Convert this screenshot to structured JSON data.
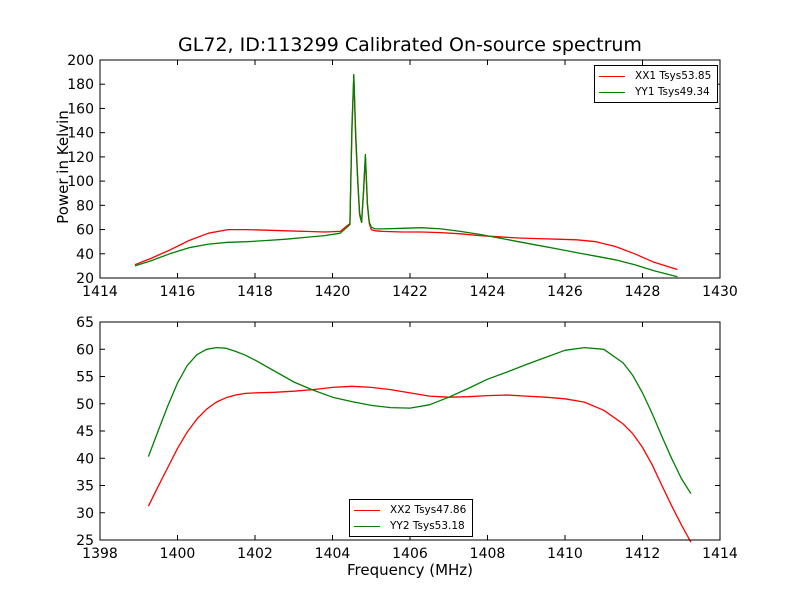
{
  "figure": {
    "title": "GL72, ID:113299 Calibrated On-source spectrum",
    "xlabel": "Frequency (MHz)",
    "top_ylabel": "Power in Kelvin"
  },
  "colors": {
    "red": "#ff0000",
    "green": "#008000"
  },
  "chart_data": [
    {
      "type": "line",
      "title": "GL72, ID:113299 Calibrated On-source spectrum",
      "xlabel": "",
      "ylabel": "Power in Kelvin",
      "xlim": [
        1414,
        1430
      ],
      "ylim": [
        20,
        200
      ],
      "xticks": [
        1414,
        1416,
        1418,
        1420,
        1422,
        1424,
        1426,
        1428,
        1430
      ],
      "yticks": [
        20,
        40,
        60,
        80,
        100,
        120,
        140,
        160,
        180,
        200
      ],
      "grid": false,
      "legend_position": "top-right",
      "series": [
        {
          "name": "XX1 Tsys53.85",
          "color": "#ff0000",
          "x": [
            1414.9,
            1415.3,
            1415.8,
            1416.3,
            1416.8,
            1417.3,
            1417.8,
            1418.3,
            1418.8,
            1419.3,
            1419.8,
            1420.2,
            1420.45,
            1420.5,
            1420.55,
            1420.6,
            1420.65,
            1420.7,
            1420.75,
            1420.8,
            1420.85,
            1420.9,
            1420.95,
            1421.0,
            1421.1,
            1421.3,
            1421.8,
            1422.3,
            1422.8,
            1423.3,
            1423.8,
            1424.3,
            1424.8,
            1425.3,
            1425.8,
            1426.3,
            1426.8,
            1427.3,
            1427.8,
            1428.3,
            1428.9
          ],
          "y": [
            31,
            36,
            43,
            51,
            57,
            60,
            60,
            59.5,
            59,
            58.5,
            58,
            58.5,
            65,
            140,
            187,
            135,
            100,
            72,
            66,
            90,
            120,
            80,
            65,
            60,
            59,
            58.5,
            58,
            58,
            57.5,
            56.5,
            55,
            54,
            53,
            52.5,
            52,
            51.5,
            50,
            46,
            40,
            33,
            27
          ]
        },
        {
          "name": "YY1 Tsys49.34",
          "color": "#008000",
          "x": [
            1414.9,
            1415.3,
            1415.8,
            1416.3,
            1416.8,
            1417.3,
            1417.8,
            1418.3,
            1418.8,
            1419.3,
            1419.8,
            1420.2,
            1420.45,
            1420.5,
            1420.55,
            1420.6,
            1420.65,
            1420.7,
            1420.75,
            1420.8,
            1420.85,
            1420.9,
            1420.95,
            1421.0,
            1421.1,
            1421.3,
            1421.8,
            1422.3,
            1422.8,
            1423.3,
            1423.8,
            1424.3,
            1424.8,
            1425.3,
            1425.8,
            1426.3,
            1426.8,
            1427.3,
            1427.8,
            1428.3,
            1428.9
          ],
          "y": [
            30,
            34,
            40,
            45,
            48,
            49.5,
            50,
            51,
            52,
            53.5,
            55,
            57,
            64,
            145,
            188,
            140,
            102,
            74,
            66,
            92,
            122,
            82,
            66,
            62,
            60.5,
            60.5,
            61,
            61.5,
            60.5,
            58.5,
            56,
            53,
            50,
            47,
            44,
            41,
            38,
            35,
            31,
            26,
            21
          ]
        }
      ]
    },
    {
      "type": "line",
      "title": "",
      "xlabel": "Frequency (MHz)",
      "ylabel": "",
      "xlim": [
        1398,
        1414
      ],
      "ylim": [
        25,
        65
      ],
      "xticks": [
        1398,
        1400,
        1402,
        1404,
        1406,
        1408,
        1410,
        1412,
        1414
      ],
      "yticks": [
        25,
        30,
        35,
        40,
        45,
        50,
        55,
        60,
        65
      ],
      "grid": false,
      "legend_position": "bottom-center",
      "series": [
        {
          "name": "XX2 Tsys47.86",
          "color": "#ff0000",
          "x": [
            1399.25,
            1399.5,
            1399.75,
            1400.0,
            1400.25,
            1400.5,
            1400.75,
            1401.0,
            1401.25,
            1401.5,
            1401.75,
            1402.0,
            1402.5,
            1403.0,
            1403.5,
            1404.0,
            1404.5,
            1405.0,
            1405.5,
            1406.0,
            1406.5,
            1407.0,
            1407.5,
            1408.0,
            1408.5,
            1409.0,
            1409.5,
            1410.0,
            1410.5,
            1411.0,
            1411.5,
            1411.75,
            1412.0,
            1412.25,
            1412.5,
            1412.75,
            1413.0,
            1413.25
          ],
          "y": [
            31.2,
            34.8,
            38.3,
            41.8,
            44.8,
            47.2,
            49.0,
            50.3,
            51.1,
            51.6,
            51.9,
            52.0,
            52.1,
            52.3,
            52.6,
            53.0,
            53.2,
            53.0,
            52.6,
            52.0,
            51.4,
            51.2,
            51.3,
            51.5,
            51.6,
            51.4,
            51.2,
            50.9,
            50.3,
            48.8,
            46.3,
            44.5,
            42.0,
            38.8,
            35.0,
            31.3,
            27.8,
            24.6
          ]
        },
        {
          "name": "YY2 Tsys53.18",
          "color": "#008000",
          "x": [
            1399.25,
            1399.5,
            1399.75,
            1400.0,
            1400.25,
            1400.5,
            1400.75,
            1401.0,
            1401.25,
            1401.5,
            1401.75,
            1402.0,
            1402.5,
            1403.0,
            1403.5,
            1404.0,
            1404.5,
            1405.0,
            1405.5,
            1406.0,
            1406.5,
            1407.0,
            1407.5,
            1408.0,
            1408.5,
            1409.0,
            1409.5,
            1410.0,
            1410.5,
            1411.0,
            1411.5,
            1411.75,
            1412.0,
            1412.25,
            1412.5,
            1412.75,
            1413.0,
            1413.25
          ],
          "y": [
            40.3,
            45.0,
            49.6,
            53.8,
            57.0,
            59.0,
            60.0,
            60.3,
            60.2,
            59.6,
            58.9,
            58.0,
            56.0,
            54.0,
            52.5,
            51.2,
            50.4,
            49.7,
            49.3,
            49.2,
            49.8,
            51.2,
            52.8,
            54.5,
            55.8,
            57.2,
            58.5,
            59.8,
            60.3,
            60.0,
            57.5,
            55.2,
            52.0,
            48.2,
            44.0,
            40.0,
            36.3,
            33.5
          ]
        }
      ]
    }
  ]
}
